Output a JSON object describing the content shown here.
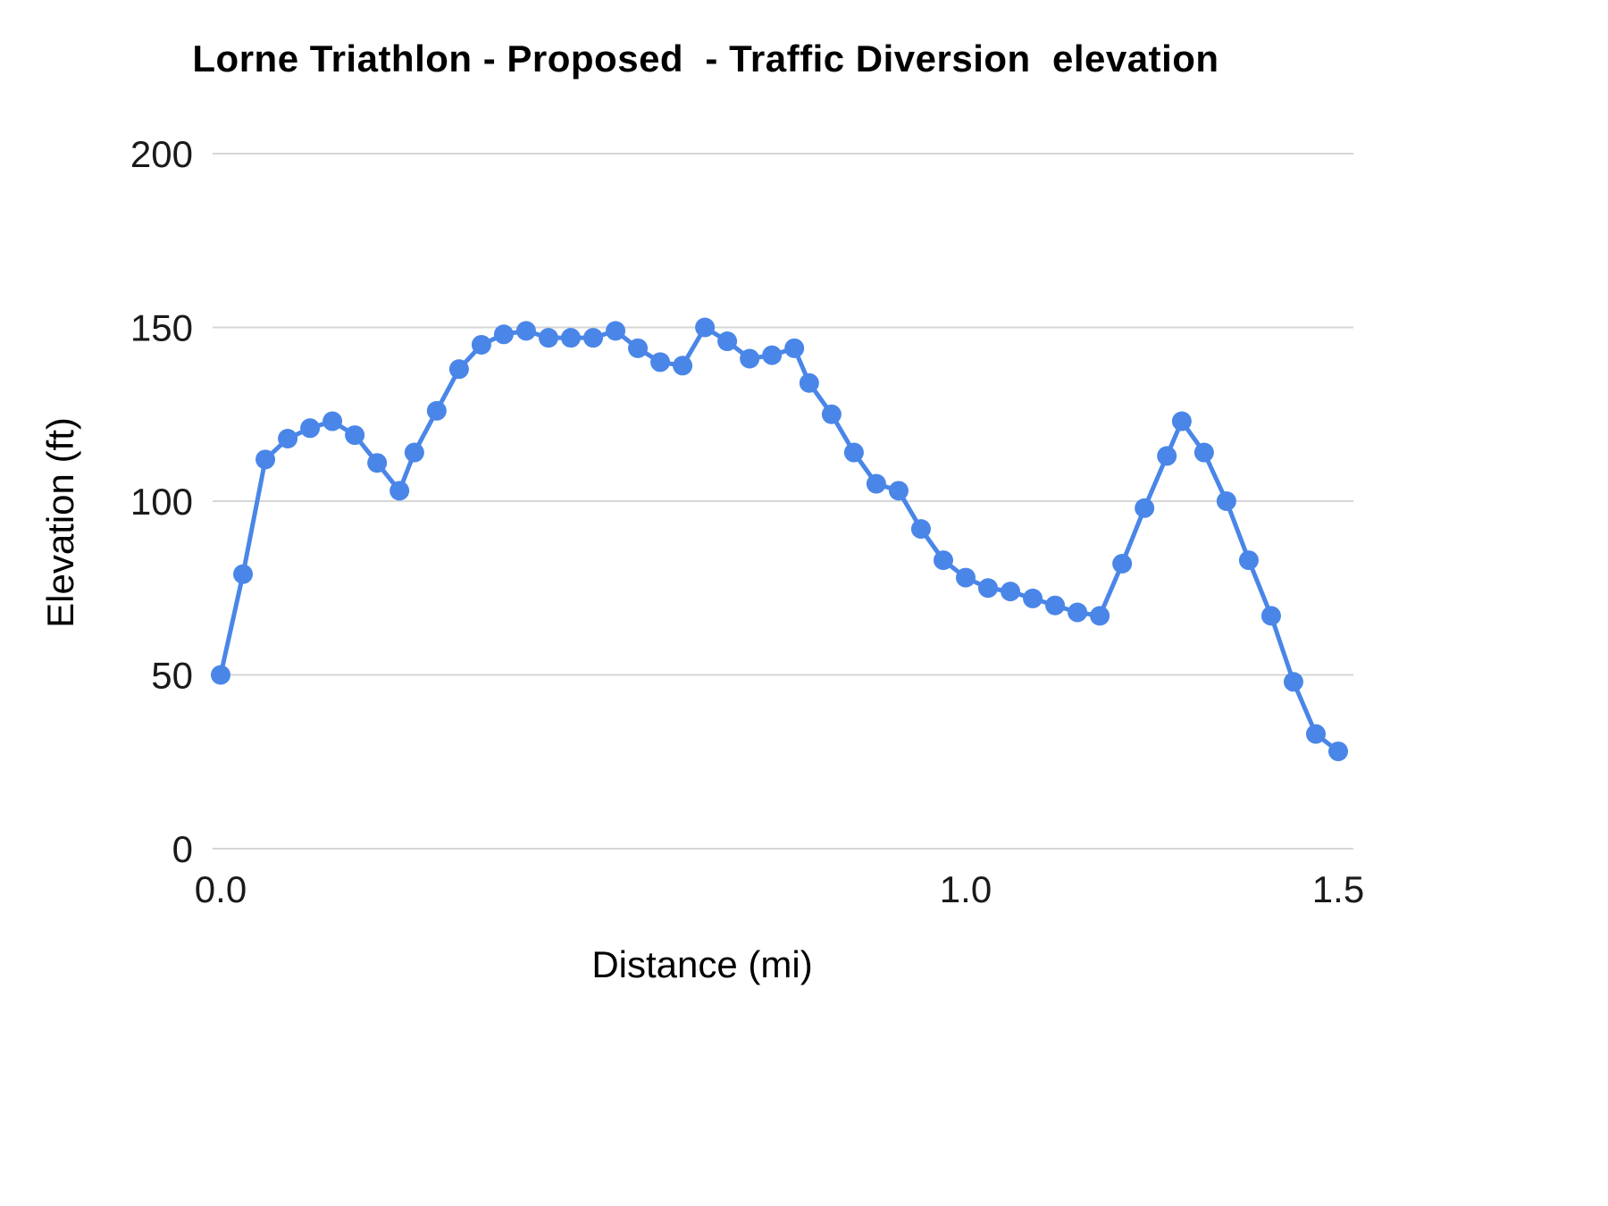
{
  "chart_data": {
    "type": "line",
    "title": "Lorne Triathlon - Proposed  - Traffic Diversion  elevation",
    "xlabel": "Distance (mi)",
    "ylabel": "Elevation (ft)",
    "xlim": [
      0,
      1.5
    ],
    "ylim": [
      0,
      200
    ],
    "xticks": [
      0.0,
      1.0,
      1.5
    ],
    "xtick_labels": [
      "0.0",
      "1.0",
      "1.5"
    ],
    "yticks": [
      0,
      50,
      100,
      150,
      200
    ],
    "ytick_labels": [
      "0",
      "50",
      "100",
      "150",
      "200"
    ],
    "grid": "horizontal",
    "legend_position": "none",
    "line_color": "#4a86e8",
    "marker_color": "#4a86e8",
    "gridline_color": "#d6d6d6",
    "background": "#ffffff",
    "x": [
      0.0,
      0.03,
      0.06,
      0.09,
      0.12,
      0.15,
      0.18,
      0.21,
      0.24,
      0.26,
      0.29,
      0.32,
      0.35,
      0.38,
      0.41,
      0.44,
      0.47,
      0.5,
      0.53,
      0.56,
      0.59,
      0.62,
      0.65,
      0.68,
      0.71,
      0.74,
      0.77,
      0.79,
      0.82,
      0.85,
      0.88,
      0.91,
      0.94,
      0.97,
      1.0,
      1.03,
      1.06,
      1.09,
      1.12,
      1.15,
      1.18,
      1.21,
      1.24,
      1.27,
      1.29,
      1.32,
      1.35,
      1.38,
      1.41,
      1.44,
      1.47,
      1.5
    ],
    "y": [
      50,
      79,
      112,
      118,
      121,
      123,
      119,
      111,
      103,
      114,
      126,
      138,
      145,
      148,
      149,
      147,
      147,
      147,
      149,
      144,
      140,
      139,
      150,
      146,
      141,
      142,
      144,
      134,
      125,
      114,
      105,
      103,
      92,
      83,
      78,
      75,
      74,
      72,
      70,
      68,
      67,
      82,
      98,
      113,
      123,
      114,
      100,
      83,
      67,
      48,
      33,
      28
    ]
  }
}
